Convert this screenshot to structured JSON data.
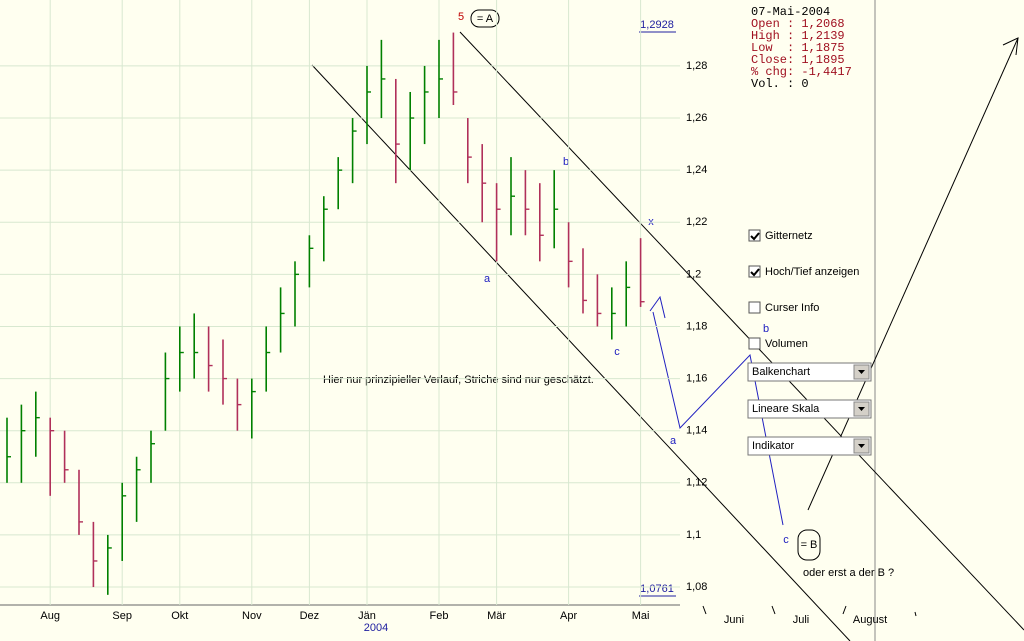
{
  "chart_data": {
    "type": "ohlc",
    "categories": [
      null,
      null,
      null,
      "Aug",
      null,
      null,
      null,
      null,
      "Sep",
      null,
      null,
      null,
      "Okt",
      null,
      null,
      null,
      null,
      "Nov",
      null,
      null,
      null,
      "Dez",
      null,
      null,
      null,
      "Jän",
      null,
      null,
      null,
      null,
      "Feb",
      null,
      null,
      null,
      "Mär",
      null,
      null,
      null,
      null,
      "Apr",
      null,
      null,
      null,
      null,
      "Mai"
    ],
    "year_label": "2004",
    "future_months": [
      "Juni",
      "Juli",
      "August"
    ],
    "high": [
      1.145,
      1.15,
      1.155,
      1.145,
      1.14,
      1.125,
      1.105,
      1.1,
      1.12,
      1.13,
      1.14,
      1.17,
      1.18,
      1.185,
      1.18,
      1.175,
      1.16,
      1.16,
      1.18,
      1.195,
      1.205,
      1.215,
      1.23,
      1.245,
      1.26,
      1.28,
      1.29,
      1.275,
      1.27,
      1.28,
      1.29,
      1.2928,
      1.26,
      1.25,
      1.235,
      1.245,
      1.24,
      1.235,
      1.24,
      1.22,
      1.21,
      1.2,
      1.195,
      1.205,
      1.2139
    ],
    "low": [
      1.12,
      1.12,
      1.13,
      1.115,
      1.12,
      1.1,
      1.08,
      1.077,
      1.09,
      1.105,
      1.12,
      1.14,
      1.155,
      1.16,
      1.155,
      1.15,
      1.14,
      1.137,
      1.155,
      1.17,
      1.18,
      1.195,
      1.205,
      1.225,
      1.235,
      1.25,
      1.26,
      1.235,
      1.24,
      1.25,
      1.26,
      1.265,
      1.235,
      1.22,
      1.205,
      1.215,
      1.215,
      1.205,
      1.21,
      1.195,
      1.185,
      1.18,
      1.175,
      1.18,
      1.1875
    ],
    "close": [
      1.13,
      1.14,
      1.145,
      1.14,
      1.125,
      1.105,
      1.09,
      1.095,
      1.115,
      1.125,
      1.135,
      1.16,
      1.17,
      1.17,
      1.165,
      1.16,
      1.15,
      1.155,
      1.17,
      1.185,
      1.2,
      1.21,
      1.225,
      1.24,
      1.255,
      1.27,
      1.275,
      1.25,
      1.26,
      1.27,
      1.275,
      1.27,
      1.245,
      1.235,
      1.225,
      1.23,
      1.225,
      1.215,
      1.225,
      1.205,
      1.19,
      1.185,
      1.185,
      1.195,
      1.1895
    ],
    "up_color": "#008000",
    "down_color": "#b0305a",
    "ylim": [
      1.0731,
      1.3053
    ],
    "yticks": [
      {
        "value": 1.08,
        "label": "1,08"
      },
      {
        "value": 1.1,
        "label": "1,1"
      },
      {
        "value": 1.12,
        "label": "1,12"
      },
      {
        "value": 1.14,
        "label": "1,14"
      },
      {
        "value": 1.16,
        "label": "1,16"
      },
      {
        "value": 1.18,
        "label": "1,18"
      },
      {
        "value": 1.2,
        "label": "1,2"
      },
      {
        "value": 1.22,
        "label": "1,22"
      },
      {
        "value": 1.24,
        "label": "1,24"
      },
      {
        "value": 1.26,
        "label": "1,26"
      },
      {
        "value": 1.28,
        "label": "1,28"
      }
    ],
    "max_label": "1,2928",
    "min_label": "1,0761",
    "grid": true,
    "annotations": {
      "wave5": "5",
      "eqA": "= A",
      "a1": "a",
      "b1": "b",
      "c1": "c",
      "x": "x",
      "a2": "a",
      "b2": "b",
      "c2": "c",
      "eqB": "= B",
      "note": "Hier nur prinzipieller Verlauf, Striche sind nur geschätzt.",
      "alt": "oder erst a der B ?"
    }
  },
  "info": [
    "07-Mai-2004",
    "Open : 1,2068",
    "High : 1,2139",
    "Low  : 1,1875",
    "Close: 1,1895",
    "% chg: -1,4417",
    "Vol. : 0"
  ],
  "controls": {
    "checkboxes": [
      {
        "label": "Gitternetz",
        "checked": true
      },
      {
        "label": "Hoch/Tief anzeigen",
        "checked": true
      },
      {
        "label": "Curser Info",
        "checked": false
      },
      {
        "label": "Volumen",
        "checked": false
      }
    ],
    "dropdowns": [
      "Balkenchart",
      "Lineare Skala",
      "Indikator"
    ]
  }
}
